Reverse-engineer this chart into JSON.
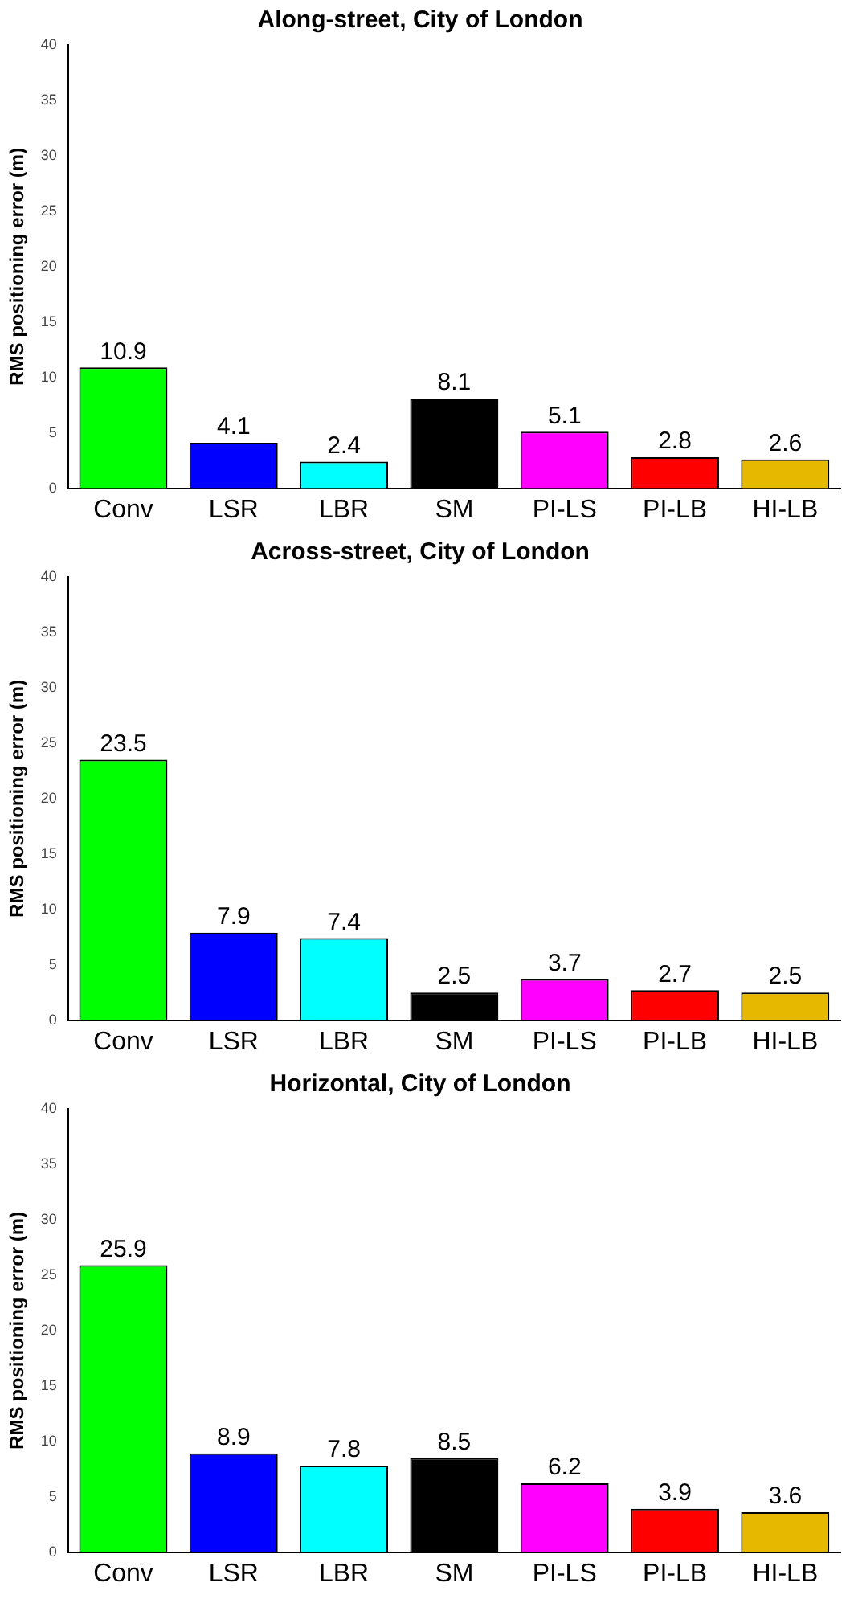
{
  "chart_data": [
    {
      "type": "bar",
      "title": "Along-street, City of London",
      "ylabel": "RMS positioning error (m)",
      "categories": [
        "Conv",
        "LSR",
        "LBR",
        "SM",
        "PI-LS",
        "PI-LB",
        "HI-LB"
      ],
      "values": [
        10.9,
        4.1,
        2.4,
        8.1,
        5.1,
        2.8,
        2.6
      ],
      "colors": [
        "#00ff00",
        "#0000ff",
        "#00ffff",
        "#000000",
        "#ff00ff",
        "#ff0000",
        "#e6b800"
      ],
      "ylim": [
        0,
        40
      ],
      "yticks": [
        0,
        5,
        10,
        15,
        20,
        25,
        30,
        35,
        40
      ],
      "grid": false,
      "data_labels": true
    },
    {
      "type": "bar",
      "title": "Across-street, City of London",
      "ylabel": "RMS positioning error (m)",
      "categories": [
        "Conv",
        "LSR",
        "LBR",
        "SM",
        "PI-LS",
        "PI-LB",
        "HI-LB"
      ],
      "values": [
        23.5,
        7.9,
        7.4,
        2.5,
        3.7,
        2.7,
        2.5
      ],
      "colors": [
        "#00ff00",
        "#0000ff",
        "#00ffff",
        "#000000",
        "#ff00ff",
        "#ff0000",
        "#e6b800"
      ],
      "ylim": [
        0,
        40
      ],
      "yticks": [
        0,
        5,
        10,
        15,
        20,
        25,
        30,
        35,
        40
      ],
      "grid": false,
      "data_labels": true
    },
    {
      "type": "bar",
      "title": "Horizontal, City of London",
      "ylabel": "RMS positioning error (m)",
      "categories": [
        "Conv",
        "LSR",
        "LBR",
        "SM",
        "PI-LS",
        "PI-LB",
        "HI-LB"
      ],
      "values": [
        25.9,
        8.9,
        7.8,
        8.5,
        6.2,
        3.9,
        3.6
      ],
      "colors": [
        "#00ff00",
        "#0000ff",
        "#00ffff",
        "#000000",
        "#ff00ff",
        "#ff0000",
        "#e6b800"
      ],
      "ylim": [
        0,
        40
      ],
      "yticks": [
        0,
        5,
        10,
        15,
        20,
        25,
        30,
        35,
        40
      ],
      "grid": false,
      "data_labels": true
    }
  ]
}
